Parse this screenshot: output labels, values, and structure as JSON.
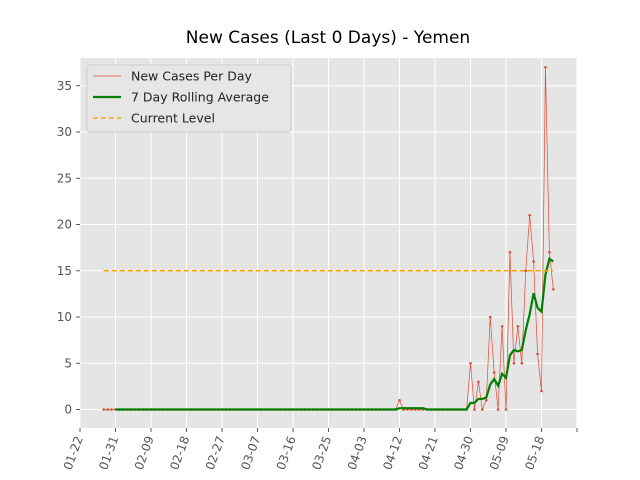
{
  "chart_data": {
    "type": "line",
    "title": "New Cases (Last 0 Days) - Yemen",
    "x": [
      "01-28",
      "01-29",
      "01-30",
      "01-31",
      "02-01",
      "02-02",
      "02-03",
      "02-04",
      "02-05",
      "02-06",
      "02-07",
      "02-08",
      "02-09",
      "02-10",
      "02-11",
      "02-12",
      "02-13",
      "02-14",
      "02-15",
      "02-16",
      "02-17",
      "02-18",
      "02-19",
      "02-20",
      "02-21",
      "02-22",
      "02-23",
      "02-24",
      "02-25",
      "02-26",
      "02-27",
      "02-28",
      "02-29",
      "03-01",
      "03-02",
      "03-03",
      "03-04",
      "03-05",
      "03-06",
      "03-07",
      "03-08",
      "03-09",
      "03-10",
      "03-11",
      "03-12",
      "03-13",
      "03-14",
      "03-15",
      "03-16",
      "03-17",
      "03-18",
      "03-19",
      "03-20",
      "03-21",
      "03-22",
      "03-23",
      "03-24",
      "03-25",
      "03-26",
      "03-27",
      "03-28",
      "03-29",
      "03-30",
      "03-31",
      "04-01",
      "04-02",
      "04-03",
      "04-04",
      "04-05",
      "04-06",
      "04-07",
      "04-08",
      "04-09",
      "04-10",
      "04-11",
      "04-12",
      "04-13",
      "04-14",
      "04-15",
      "04-16",
      "04-17",
      "04-18",
      "04-19",
      "04-20",
      "04-21",
      "04-22",
      "04-23",
      "04-24",
      "04-25",
      "04-26",
      "04-27",
      "04-28",
      "04-29",
      "04-30",
      "05-01",
      "05-02",
      "05-03",
      "05-04",
      "05-05",
      "05-06",
      "05-07",
      "05-08",
      "05-09",
      "05-10",
      "05-11",
      "05-12",
      "05-13",
      "05-14",
      "05-15",
      "05-16",
      "05-17",
      "05-18",
      "05-19",
      "05-20",
      "05-21"
    ],
    "series": [
      {
        "name": "New Cases Per Day",
        "color": "#e24a33",
        "values": [
          0,
          0,
          0,
          0,
          0,
          0,
          0,
          0,
          0,
          0,
          0,
          0,
          0,
          0,
          0,
          0,
          0,
          0,
          0,
          0,
          0,
          0,
          0,
          0,
          0,
          0,
          0,
          0,
          0,
          0,
          0,
          0,
          0,
          0,
          0,
          0,
          0,
          0,
          0,
          0,
          0,
          0,
          0,
          0,
          0,
          0,
          0,
          0,
          0,
          0,
          0,
          0,
          0,
          0,
          0,
          0,
          0,
          0,
          0,
          0,
          0,
          0,
          0,
          0,
          0,
          0,
          0,
          0,
          0,
          0,
          0,
          0,
          0,
          0,
          0,
          1,
          0,
          0,
          0,
          0,
          0,
          0,
          0,
          0,
          0,
          0,
          0,
          0,
          0,
          0,
          0,
          0,
          0,
          5,
          0,
          3,
          0,
          1,
          10,
          4,
          0,
          9,
          0,
          17,
          5,
          9,
          5,
          15,
          21,
          16,
          6,
          2,
          37,
          17,
          13
        ]
      },
      {
        "name": "7 Day Rolling Average",
        "color": "#008000",
        "values": [
          null,
          null,
          null,
          0,
          0,
          0,
          0,
          0,
          0,
          0,
          0,
          0,
          0,
          0,
          0,
          0,
          0,
          0,
          0,
          0,
          0,
          0,
          0,
          0,
          0,
          0,
          0,
          0,
          0,
          0,
          0,
          0,
          0,
          0,
          0,
          0,
          0,
          0,
          0,
          0,
          0,
          0,
          0,
          0,
          0,
          0,
          0,
          0,
          0,
          0,
          0,
          0,
          0,
          0,
          0,
          0,
          0,
          0,
          0,
          0,
          0,
          0,
          0,
          0,
          0,
          0,
          0,
          0,
          0,
          0,
          0,
          0,
          0,
          0,
          0,
          0.14,
          0.14,
          0.14,
          0.14,
          0.14,
          0.14,
          0.14,
          0,
          0,
          0,
          0,
          0,
          0,
          0,
          0,
          0,
          0,
          0,
          0.71,
          0.71,
          1.14,
          1.14,
          1.29,
          2.71,
          3.29,
          2.57,
          3.86,
          3.43,
          5.86,
          6.43,
          6.29,
          6.43,
          8.57,
          10.29,
          12.57,
          11,
          10.57,
          14.57,
          16.29,
          16
        ]
      },
      {
        "name": "Current Level",
        "color": "#ffa500",
        "value": 15
      }
    ],
    "xlim": [
      "01-22",
      "05-27"
    ],
    "xticks": [
      "01-22",
      "01-31",
      "02-09",
      "02-18",
      "02-27",
      "03-07",
      "03-16",
      "03-25",
      "04-03",
      "04-12",
      "04-21",
      "04-30",
      "05-09",
      "05-18",
      {
        "value": "05-27",
        "label": null
      }
    ],
    "ylim": [
      -2,
      38
    ],
    "yticks": [
      0,
      5,
      10,
      15,
      20,
      25,
      30,
      35
    ],
    "grid": true,
    "legend": "upper left"
  }
}
